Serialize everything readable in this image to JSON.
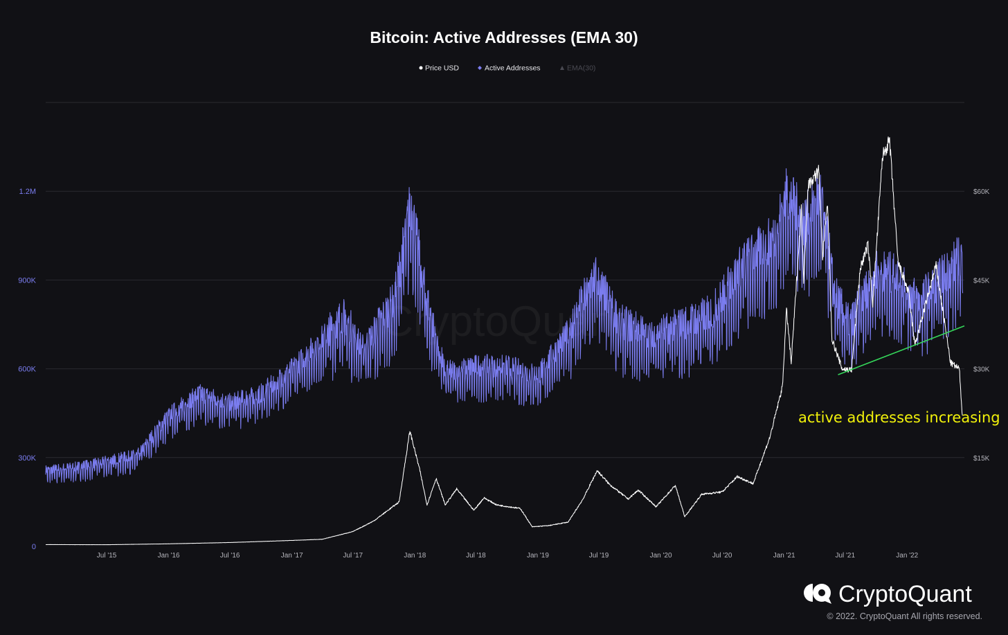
{
  "chart_data": {
    "type": "line",
    "title": "Bitcoin: Active Addresses (EMA 30)",
    "legend": [
      {
        "label": "Price USD",
        "color": "#ffffff",
        "marker": "circle"
      },
      {
        "label": "Active Addresses",
        "color": "#7b7df0",
        "marker": "diamond"
      },
      {
        "label": "EMA(30)",
        "color": "#4a4a52",
        "marker": "triangle"
      }
    ],
    "legend_position": "top-center",
    "grid": true,
    "x_range": [
      "2015-01-01",
      "2022-06-20"
    ],
    "x_ticks": [
      {
        "label": "Jul '15",
        "date": "2015-07-01"
      },
      {
        "label": "Jan '16",
        "date": "2016-01-01"
      },
      {
        "label": "Jul '16",
        "date": "2016-07-01"
      },
      {
        "label": "Jan '17",
        "date": "2017-01-01"
      },
      {
        "label": "Jul '17",
        "date": "2017-07-01"
      },
      {
        "label": "Jan '18",
        "date": "2018-01-01"
      },
      {
        "label": "Jul '18",
        "date": "2018-07-01"
      },
      {
        "label": "Jan '19",
        "date": "2019-01-01"
      },
      {
        "label": "Jul '19",
        "date": "2019-07-01"
      },
      {
        "label": "Jan '20",
        "date": "2020-01-01"
      },
      {
        "label": "Jul '20",
        "date": "2020-07-01"
      },
      {
        "label": "Jan '21",
        "date": "2021-01-01"
      },
      {
        "label": "Jul '21",
        "date": "2021-07-01"
      },
      {
        "label": "Jan '22",
        "date": "2022-01-01"
      }
    ],
    "y_left": {
      "series": "Active Addresses",
      "range": [
        0,
        1500000
      ],
      "ticks": [
        {
          "label": "0",
          "value": 0
        },
        {
          "label": "300K",
          "value": 300000
        },
        {
          "label": "600K",
          "value": 600000
        },
        {
          "label": "900K",
          "value": 900000
        },
        {
          "label": "1.2M",
          "value": 1200000
        }
      ]
    },
    "y_right": {
      "series": "Price USD",
      "range": [
        0,
        75000
      ],
      "ticks": [
        {
          "label": "$15K",
          "value": 15000
        },
        {
          "label": "$30K",
          "value": 30000
        },
        {
          "label": "$45K",
          "value": 45000
        },
        {
          "label": "$60K",
          "value": 60000
        }
      ]
    },
    "series": [
      {
        "name": "Active Addresses",
        "color": "#7b7df0",
        "axis": "left",
        "points": [
          [
            "2015-01-01",
            250000
          ],
          [
            "2015-04-01",
            260000
          ],
          [
            "2015-07-01",
            280000
          ],
          [
            "2015-10-01",
            300000
          ],
          [
            "2016-01-01",
            430000
          ],
          [
            "2016-04-01",
            500000
          ],
          [
            "2016-07-01",
            470000
          ],
          [
            "2016-10-01",
            500000
          ],
          [
            "2017-01-01",
            580000
          ],
          [
            "2017-04-01",
            680000
          ],
          [
            "2017-06-01",
            750000
          ],
          [
            "2017-08-01",
            650000
          ],
          [
            "2017-11-01",
            800000
          ],
          [
            "2017-12-20",
            1120000
          ],
          [
            "2018-02-01",
            820000
          ],
          [
            "2018-04-01",
            570000
          ],
          [
            "2018-07-01",
            590000
          ],
          [
            "2018-10-01",
            590000
          ],
          [
            "2019-01-01",
            560000
          ],
          [
            "2019-04-01",
            700000
          ],
          [
            "2019-06-20",
            880000
          ],
          [
            "2019-09-01",
            730000
          ],
          [
            "2019-12-01",
            690000
          ],
          [
            "2020-03-01",
            720000
          ],
          [
            "2020-06-01",
            760000
          ],
          [
            "2020-09-01",
            920000
          ],
          [
            "2020-12-01",
            1000000
          ],
          [
            "2021-01-10",
            1150000
          ],
          [
            "2021-03-01",
            1050000
          ],
          [
            "2021-04-20",
            1150000
          ],
          [
            "2021-06-01",
            820000
          ],
          [
            "2021-07-15",
            720000
          ],
          [
            "2021-10-01",
            900000
          ],
          [
            "2021-12-01",
            880000
          ],
          [
            "2022-02-01",
            800000
          ],
          [
            "2022-04-01",
            860000
          ],
          [
            "2022-06-15",
            950000
          ]
        ]
      },
      {
        "name": "Price USD",
        "color": "#ffffff",
        "axis": "right",
        "points": [
          [
            "2015-01-01",
            300
          ],
          [
            "2015-07-01",
            280
          ],
          [
            "2016-01-01",
            430
          ],
          [
            "2016-07-01",
            650
          ],
          [
            "2017-01-01",
            1000
          ],
          [
            "2017-04-01",
            1200
          ],
          [
            "2017-07-01",
            2500
          ],
          [
            "2017-09-01",
            4300
          ],
          [
            "2017-11-15",
            7500
          ],
          [
            "2017-12-17",
            19500
          ],
          [
            "2018-01-15",
            13000
          ],
          [
            "2018-02-06",
            7000
          ],
          [
            "2018-03-05",
            11500
          ],
          [
            "2018-04-01",
            7000
          ],
          [
            "2018-05-05",
            9700
          ],
          [
            "2018-06-25",
            6100
          ],
          [
            "2018-07-25",
            8200
          ],
          [
            "2018-09-01",
            7000
          ],
          [
            "2018-11-10",
            6400
          ],
          [
            "2018-12-15",
            3300
          ],
          [
            "2019-02-01",
            3500
          ],
          [
            "2019-04-01",
            4100
          ],
          [
            "2019-05-15",
            8000
          ],
          [
            "2019-06-26",
            12800
          ],
          [
            "2019-08-01",
            10500
          ],
          [
            "2019-09-26",
            8000
          ],
          [
            "2019-10-26",
            9500
          ],
          [
            "2019-12-18",
            6700
          ],
          [
            "2020-02-13",
            10300
          ],
          [
            "2020-03-12",
            5000
          ],
          [
            "2020-05-01",
            8800
          ],
          [
            "2020-07-01",
            9200
          ],
          [
            "2020-08-15",
            11800
          ],
          [
            "2020-10-01",
            10600
          ],
          [
            "2020-11-20",
            18500
          ],
          [
            "2020-12-27",
            27000
          ],
          [
            "2021-01-08",
            40000
          ],
          [
            "2021-01-22",
            31000
          ],
          [
            "2021-02-21",
            57000
          ],
          [
            "2021-02-28",
            45000
          ],
          [
            "2021-03-13",
            61000
          ],
          [
            "2021-04-14",
            63500
          ],
          [
            "2021-04-25",
            49000
          ],
          [
            "2021-05-10",
            58000
          ],
          [
            "2021-05-23",
            35000
          ],
          [
            "2021-06-22",
            30000
          ],
          [
            "2021-07-20",
            29800
          ],
          [
            "2021-08-15",
            47000
          ],
          [
            "2021-09-07",
            51000
          ],
          [
            "2021-09-21",
            41000
          ],
          [
            "2021-10-20",
            66000
          ],
          [
            "2021-11-10",
            68500
          ],
          [
            "2021-12-05",
            48000
          ],
          [
            "2022-01-05",
            43000
          ],
          [
            "2022-01-24",
            34000
          ],
          [
            "2022-03-28",
            47500
          ],
          [
            "2022-05-10",
            31000
          ],
          [
            "2022-06-05",
            30000
          ],
          [
            "2022-06-14",
            22000
          ]
        ]
      }
    ],
    "trendline": {
      "color": "#35d65a",
      "from": [
        "2021-06-10",
        580000
      ],
      "to": [
        "2022-06-20",
        745000
      ]
    },
    "annotation": {
      "text": "active addresses increasing",
      "color": "#f1f10a"
    }
  },
  "branding": {
    "watermark": "CryptoQuant",
    "logo_text": "CryptoQuant",
    "copyright": "© 2022. CryptoQuant All rights reserved."
  }
}
